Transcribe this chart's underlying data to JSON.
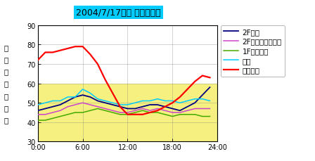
{
  "title": "2004/7/17湿度 推移グラフ",
  "ylabel_chars": [
    "相",
    "対",
    "湿",
    "度",
    "（",
    "％",
    "）"
  ],
  "xlim": [
    0,
    24
  ],
  "ylim": [
    30,
    90
  ],
  "yticks": [
    30,
    40,
    50,
    60,
    70,
    80,
    90
  ],
  "xtick_labels": [
    "0:00",
    "6:00",
    "12:00",
    "18:00",
    "24:00"
  ],
  "xtick_positions": [
    0,
    6,
    12,
    18,
    24
  ],
  "shaded_color": "#f5f080",
  "shaded_below": 60,
  "series": {
    "2F寝室": {
      "color": "#000080",
      "linestyle": "-",
      "linewidth": 1.3,
      "values": [
        46,
        47,
        48,
        49,
        51,
        53,
        54,
        53,
        51,
        50,
        49,
        48,
        47,
        47,
        48,
        49,
        49,
        48,
        47,
        46,
        48,
        50,
        54,
        58
      ],
      "times": [
        0,
        1,
        2,
        3,
        4,
        5,
        6,
        7,
        8,
        9,
        10,
        11,
        12,
        13,
        14,
        15,
        16,
        17,
        18,
        19,
        20,
        21,
        22,
        23
      ]
    },
    "2Fフリースペース": {
      "color": "#cc44cc",
      "linestyle": "-",
      "linewidth": 1.1,
      "values": [
        44,
        44,
        45,
        46,
        48,
        49,
        50,
        49,
        48,
        47,
        46,
        45,
        45,
        46,
        47,
        46,
        47,
        46,
        45,
        45,
        46,
        47,
        47,
        47
      ],
      "times": [
        0,
        1,
        2,
        3,
        4,
        5,
        6,
        7,
        8,
        9,
        10,
        11,
        12,
        13,
        14,
        15,
        16,
        17,
        18,
        19,
        20,
        21,
        22,
        23
      ]
    },
    "1Fリビング": {
      "color": "#44aa00",
      "linestyle": "-",
      "linewidth": 1.1,
      "values": [
        41,
        41,
        42,
        43,
        44,
        45,
        45,
        46,
        47,
        46,
        45,
        44,
        44,
        45,
        46,
        45,
        45,
        44,
        43,
        44,
        44,
        44,
        43,
        43
      ],
      "times": [
        0,
        1,
        2,
        3,
        4,
        5,
        6,
        7,
        8,
        9,
        10,
        11,
        12,
        13,
        14,
        15,
        16,
        17,
        18,
        19,
        20,
        21,
        22,
        23
      ]
    },
    "玄関": {
      "color": "#00ccff",
      "linestyle": "-",
      "linewidth": 1.1,
      "values": [
        49,
        50,
        51,
        51,
        53,
        53,
        57,
        55,
        52,
        51,
        50,
        49,
        49,
        50,
        51,
        51,
        52,
        51,
        51,
        50,
        51,
        52,
        52,
        51
      ],
      "times": [
        0,
        1,
        2,
        3,
        4,
        5,
        6,
        7,
        8,
        9,
        10,
        11,
        12,
        13,
        14,
        15,
        16,
        17,
        18,
        19,
        20,
        21,
        22,
        23
      ]
    },
    "外気湿度": {
      "color": "#ff0000",
      "linestyle": "-",
      "linewidth": 1.6,
      "values": [
        72,
        76,
        76,
        77,
        78,
        79,
        79,
        75,
        70,
        62,
        55,
        48,
        44,
        44,
        44,
        45,
        46,
        48,
        50,
        53,
        57,
        61,
        64,
        63
      ],
      "times": [
        0,
        1,
        2,
        3,
        4,
        5,
        6,
        7,
        8,
        9,
        10,
        11,
        12,
        13,
        14,
        15,
        16,
        17,
        18,
        19,
        20,
        21,
        22,
        23
      ]
    }
  },
  "legend_order": [
    "2F寝室",
    "2Fフリースペース",
    "1Fリビング",
    "玄関",
    "外気湿度"
  ],
  "title_bg": "#00ccff",
  "title_fontsize": 9,
  "legend_fontsize": 7.5,
  "tick_fontsize": 7,
  "ylabel_fontsize": 7.5
}
